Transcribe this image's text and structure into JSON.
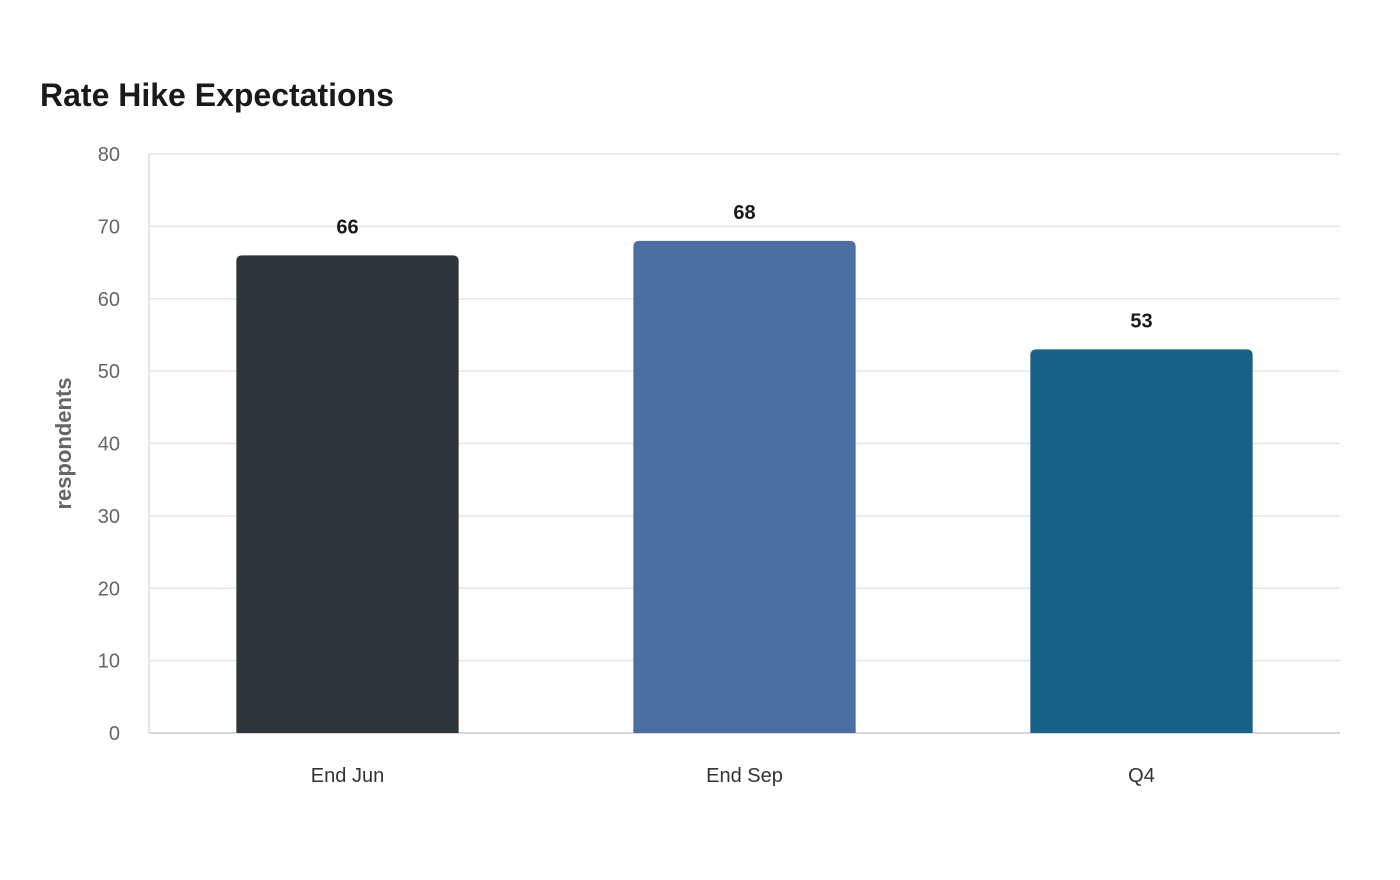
{
  "chart_data": {
    "type": "bar",
    "title": "Rate Hike Expectations",
    "xlabel": "",
    "ylabel": "respondents",
    "categories": [
      "End Jun",
      "End Sep",
      "Q4"
    ],
    "values": [
      66,
      68,
      53
    ],
    "colors": [
      "#2e3538",
      "#4c6fa3",
      "#186189"
    ],
    "ylim": [
      0,
      80
    ],
    "yticks": [
      0,
      10,
      20,
      30,
      40,
      50,
      60,
      70,
      80
    ],
    "grid": true,
    "legend": "none"
  }
}
